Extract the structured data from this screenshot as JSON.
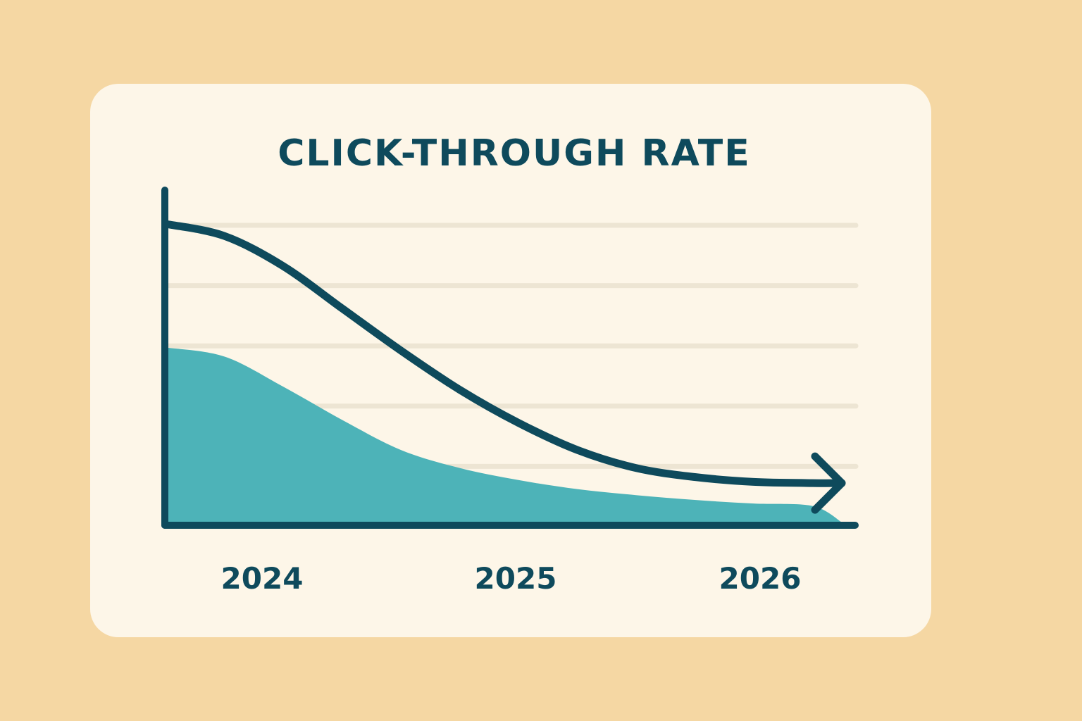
{
  "chart_data": {
    "type": "area",
    "title": "CLICK-THROUGH RATE",
    "xlabel": "",
    "ylabel": "",
    "x_ticks": [
      "2024",
      "2025",
      "2026"
    ],
    "xlim": [
      2024,
      2026.3
    ],
    "ylim": [
      0,
      5
    ],
    "grid": true,
    "gridlines_y": [
      1,
      2,
      3,
      4,
      5
    ],
    "series": [
      {
        "kind": "line",
        "arrowhead": true,
        "x": [
          2024.0,
          2024.2,
          2024.4,
          2024.6,
          2024.8,
          2025.0,
          2025.2,
          2025.4,
          2025.6,
          2025.8,
          2026.0,
          2026.2,
          2026.3
        ],
        "y": [
          5.0,
          4.8,
          4.3,
          3.6,
          2.9,
          2.25,
          1.7,
          1.25,
          0.95,
          0.8,
          0.72,
          0.7,
          0.7
        ]
      },
      {
        "kind": "area",
        "x": [
          2024.0,
          2024.2,
          2024.4,
          2024.6,
          2024.8,
          2025.0,
          2025.2,
          2025.4,
          2025.6,
          2025.8,
          2026.0,
          2026.2,
          2026.3
        ],
        "y": [
          2.95,
          2.8,
          2.3,
          1.75,
          1.25,
          0.95,
          0.75,
          0.6,
          0.5,
          0.42,
          0.36,
          0.32,
          0.05
        ]
      }
    ],
    "colors": {
      "line": "#0E4A5C",
      "area": "#4DB3B8",
      "axis": "#0E4A5C",
      "grid": "#EDE5D3",
      "background": "#F5D7A3",
      "card": "#FDF6E8"
    }
  }
}
